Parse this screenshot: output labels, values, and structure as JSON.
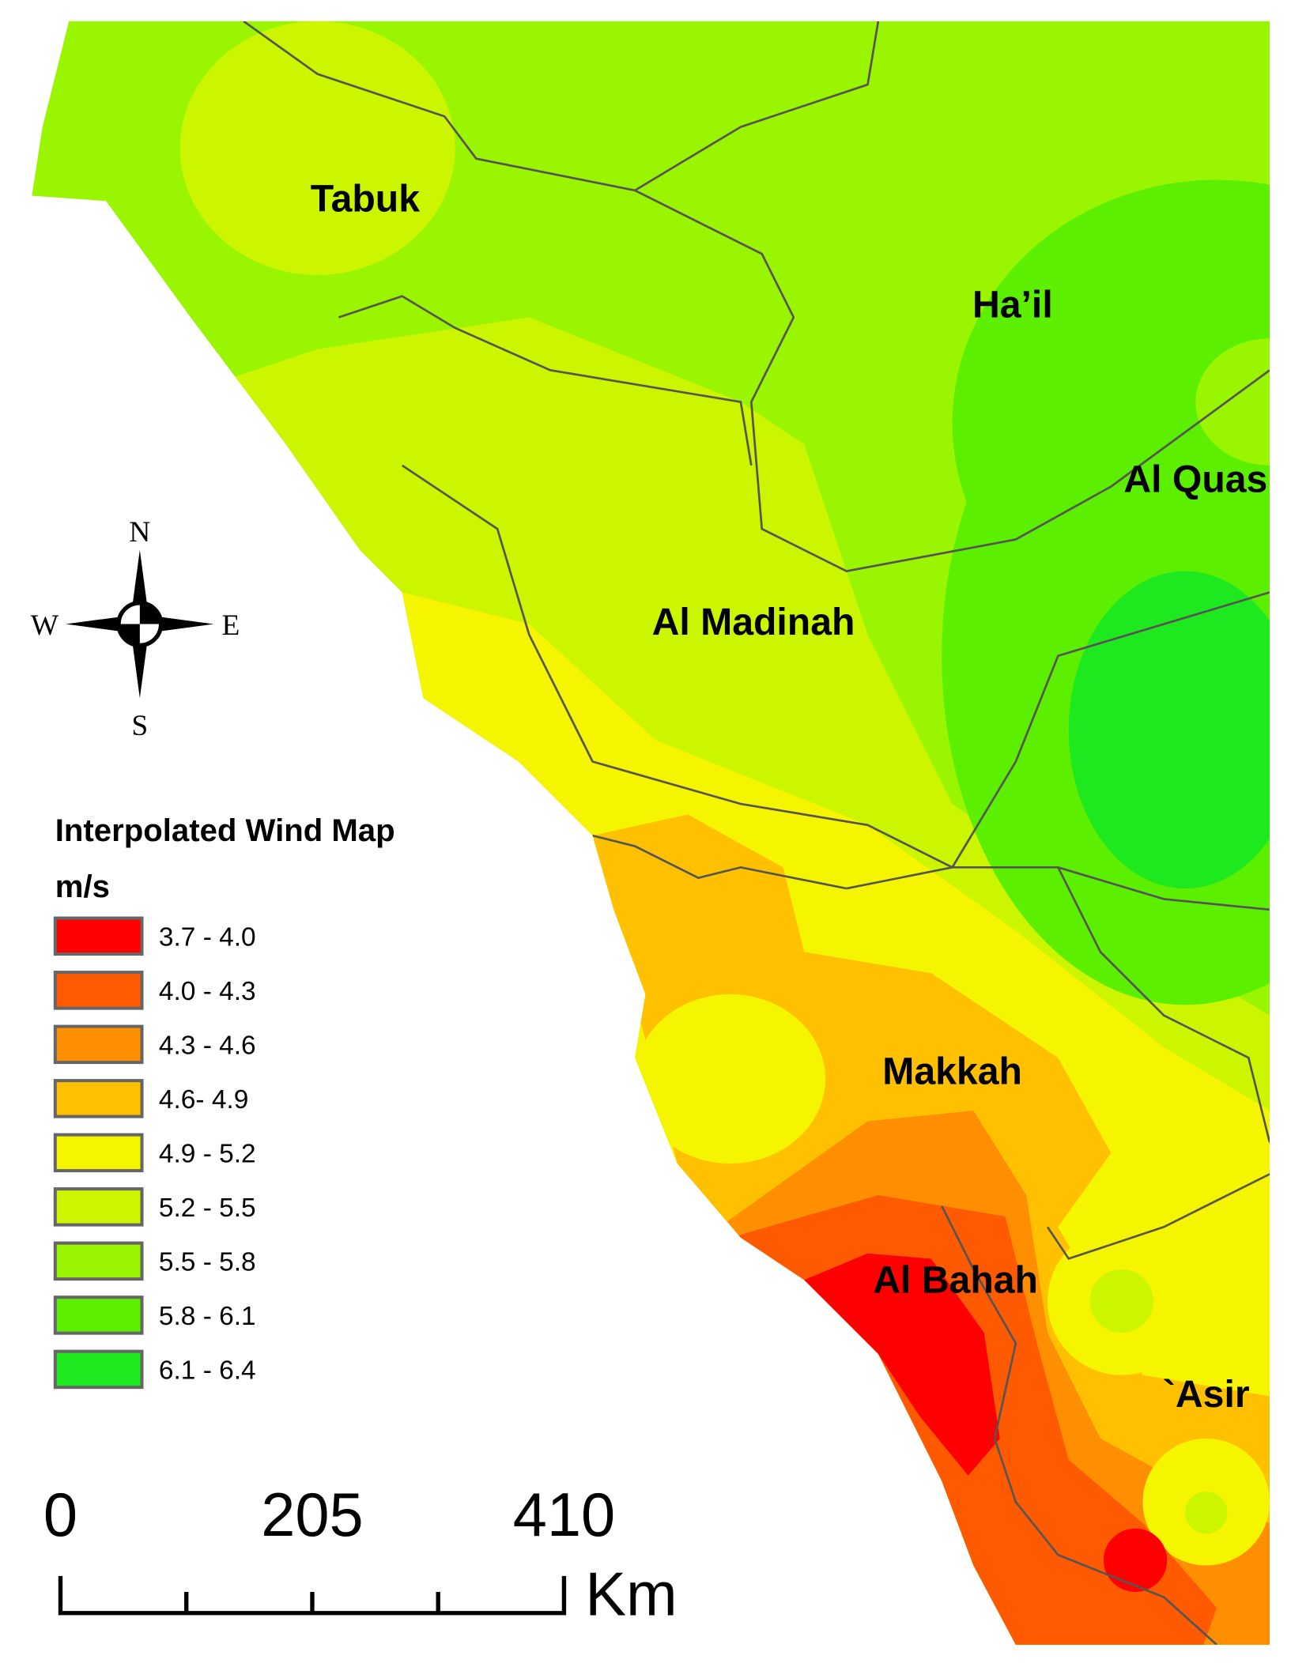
{
  "map": {
    "regions": [
      {
        "label": "Tabuk"
      },
      {
        "label": "Ha’il"
      },
      {
        "label": "Al Quas"
      },
      {
        "label": "Al Madinah"
      },
      {
        "label": "Makkah"
      },
      {
        "label": "Al Bahah"
      },
      {
        "label": "`Asir"
      }
    ],
    "compass": {
      "north": "N",
      "south": "S",
      "east": "E",
      "west": "W"
    },
    "legend": {
      "title": "Interpolated Wind Map",
      "units": "m/s",
      "items": [
        {
          "label": "3.7 - 4.0",
          "color": "#ff0000"
        },
        {
          "label": "4.0 - 4.3",
          "color": "#ff5a00"
        },
        {
          "label": "4.3 - 4.6",
          "color": "#ff8f00"
        },
        {
          "label": "4.6- 4.9",
          "color": "#ffc000"
        },
        {
          "label": "4.9 - 5.2",
          "color": "#f5f500"
        },
        {
          "label": "5.2 - 5.5",
          "color": "#ccf500"
        },
        {
          "label": "5.5 - 5.8",
          "color": "#9af500"
        },
        {
          "label": "5.8 - 6.1",
          "color": "#5cf000"
        },
        {
          "label": "6.1 - 6.4",
          "color": "#1ee81e"
        }
      ]
    },
    "scale_bar": {
      "labels": [
        "0",
        "205",
        "410"
      ],
      "unit": "Km"
    }
  }
}
